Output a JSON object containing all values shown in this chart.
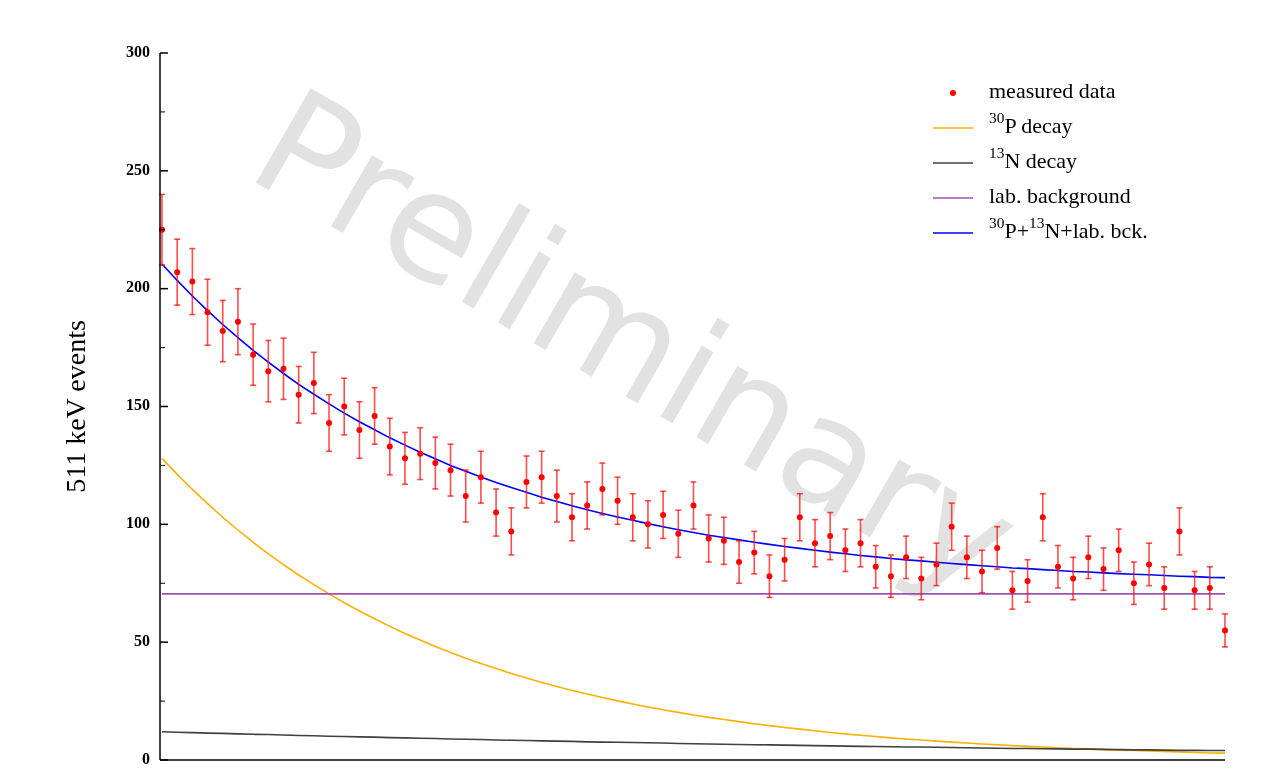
{
  "chart_data": {
    "type": "scatter",
    "ylabel": "511 keV events",
    "ylim": [
      0,
      300
    ],
    "yticks": [
      0,
      50,
      100,
      150,
      200,
      250,
      300
    ],
    "tick_labels": "y",
    "legend": "top right",
    "grid": false,
    "annotations": [
      "Preliminary"
    ],
    "categories": [
      null,
      null,
      null,
      null,
      null,
      null,
      null,
      null,
      null,
      null,
      null,
      null,
      null,
      null,
      null,
      null,
      null,
      null,
      null,
      null,
      null,
      null,
      null,
      null,
      null,
      null,
      null,
      null,
      null,
      null,
      null,
      null,
      null,
      null,
      null,
      null,
      null,
      null,
      null,
      null,
      null,
      null,
      null,
      null,
      null,
      null,
      null,
      null,
      null,
      null,
      null,
      null,
      null,
      null,
      null,
      null,
      null,
      null,
      null,
      null,
      null,
      null,
      null,
      null,
      null,
      null,
      null,
      null,
      null,
      null,
      null
    ],
    "series": [
      {
        "name": "measured data",
        "marker": "circle",
        "color": "#ff0000",
        "values": [
          225,
          207,
          203,
          190,
          182,
          186,
          172,
          165,
          166,
          155,
          160,
          143,
          150,
          140,
          146,
          133,
          128,
          130,
          126,
          123,
          112,
          120,
          105,
          97,
          118,
          120,
          112,
          103,
          108,
          115,
          110,
          103,
          100,
          104,
          96,
          108,
          94,
          93,
          84,
          88,
          78,
          85,
          103,
          92,
          95,
          89,
          92,
          82,
          78,
          86,
          77,
          83,
          99,
          86,
          80,
          90,
          72,
          76,
          103,
          82,
          77,
          86,
          81,
          89,
          75,
          83,
          73,
          97,
          72,
          73,
          55
        ],
        "errors": [
          15,
          14,
          14,
          14,
          13,
          14,
          13,
          13,
          13,
          12,
          13,
          12,
          12,
          12,
          12,
          12,
          11,
          11,
          11,
          11,
          11,
          11,
          10,
          10,
          11,
          11,
          11,
          10,
          10,
          11,
          10,
          10,
          10,
          10,
          10,
          10,
          10,
          10,
          9,
          9,
          9,
          9,
          10,
          10,
          10,
          9,
          10,
          9,
          9,
          9,
          9,
          9,
          10,
          9,
          9,
          9,
          8,
          9,
          10,
          9,
          9,
          9,
          9,
          9,
          9,
          9,
          9,
          10,
          8,
          9,
          7
        ]
      },
      {
        "name": "$^{30}$P decay",
        "type": "line",
        "line_style": "solid",
        "color": "#ffb000",
        "values": [
          128,
          121.2,
          114.8,
          108.8,
          103.0,
          97.6,
          92.4,
          87.5,
          82.9,
          78.5,
          74.4,
          70.5,
          66.7,
          63.2,
          59.9,
          56.7,
          53.7,
          50.9,
          48.2,
          45.6,
          43.2,
          40.9,
          38.8,
          36.7,
          34.8,
          32.9,
          31.2,
          29.5,
          28.0,
          26.5,
          25.1,
          23.8,
          22.5,
          21.3,
          20.2,
          19.1,
          18.1,
          17.2,
          16.3,
          15.4,
          14.6,
          13.8,
          13.1,
          12.4,
          11.7,
          11.1,
          10.5,
          10.0,
          9.4,
          8.9,
          8.5,
          8.0,
          7.6,
          7.2,
          6.8,
          6.5,
          6.1,
          5.8,
          5.5,
          5.2,
          4.9,
          4.7,
          4.4,
          4.2,
          4.0,
          3.8,
          3.6,
          3.4,
          3.2,
          3.0,
          2.9
        ]
      },
      {
        "name": "$^{13}$N decay",
        "type": "line",
        "line_style": "solid",
        "color": "#404040",
        "values": [
          12.0,
          11.8,
          11.6,
          11.4,
          11.3,
          11.1,
          10.9,
          10.8,
          10.6,
          10.4,
          10.3,
          10.1,
          10.0,
          9.8,
          9.7,
          9.5,
          9.4,
          9.2,
          9.1,
          8.9,
          8.8,
          8.7,
          8.5,
          8.4,
          8.3,
          8.1,
          8.0,
          7.9,
          7.7,
          7.6,
          7.5,
          7.4,
          7.3,
          7.2,
          7.0,
          6.9,
          6.8,
          6.7,
          6.6,
          6.5,
          6.4,
          6.3,
          6.2,
          6.1,
          6.0,
          5.9,
          5.8,
          5.7,
          5.6,
          5.5,
          5.5,
          5.4,
          5.3,
          5.2,
          5.1,
          5.0,
          4.9,
          4.9,
          4.8,
          4.7,
          4.6,
          4.6,
          4.5,
          4.4,
          4.3,
          4.3,
          4.2,
          4.1,
          4.1,
          4.0,
          4.0
        ]
      },
      {
        "name": "lab. background",
        "type": "line",
        "line_style": "solid",
        "color": "#a050b0",
        "values": [
          70.5,
          70.5,
          70.5,
          70.5,
          70.5,
          70.5,
          70.5,
          70.5,
          70.5,
          70.5,
          70.5,
          70.5,
          70.5,
          70.5,
          70.5,
          70.5,
          70.5,
          70.5,
          70.5,
          70.5,
          70.5,
          70.5,
          70.5,
          70.5,
          70.5,
          70.5,
          70.5,
          70.5,
          70.5,
          70.5,
          70.5,
          70.5,
          70.5,
          70.5,
          70.5,
          70.5,
          70.5,
          70.5,
          70.5,
          70.5,
          70.5,
          70.5,
          70.5,
          70.5,
          70.5,
          70.5,
          70.5,
          70.5,
          70.5,
          70.5,
          70.5,
          70.5,
          70.5,
          70.5,
          70.5,
          70.5,
          70.5,
          70.5,
          70.5,
          70.5,
          70.5,
          70.5,
          70.5,
          70.5,
          70.5,
          70.5,
          70.5,
          70.5,
          70.5,
          70.5,
          70.5
        ]
      },
      {
        "name": "$^{30}$P+$^{13}$N+lab. bck.",
        "type": "line",
        "line_style": "solid",
        "color": "#0000ff",
        "values": [
          210.5,
          203.5,
          196.9,
          190.7,
          184.8,
          179.2,
          173.8,
          168.8,
          164.0,
          159.4,
          155.2,
          151.1,
          147.2,
          143.5,
          140.1,
          136.7,
          133.6,
          130.6,
          127.8,
          125.0,
          122.5,
          120.1,
          117.8,
          115.6,
          113.6,
          111.5,
          109.7,
          107.9,
          106.2,
          104.6,
          103.1,
          101.7,
          100.3,
          99.0,
          97.7,
          96.5,
          95.4,
          94.4,
          93.4,
          92.4,
          91.5,
          90.6,
          89.8,
          89.0,
          88.2,
          87.5,
          86.8,
          86.2,
          85.5,
          84.9,
          84.5,
          83.9,
          83.4,
          82.9,
          82.4,
          82.0,
          81.5,
          81.2,
          80.8,
          80.4,
          80.0,
          79.8,
          79.4,
          79.1,
          78.8,
          78.6,
          78.3,
          78.0,
          77.8,
          77.5,
          77.4
        ]
      }
    ]
  }
}
